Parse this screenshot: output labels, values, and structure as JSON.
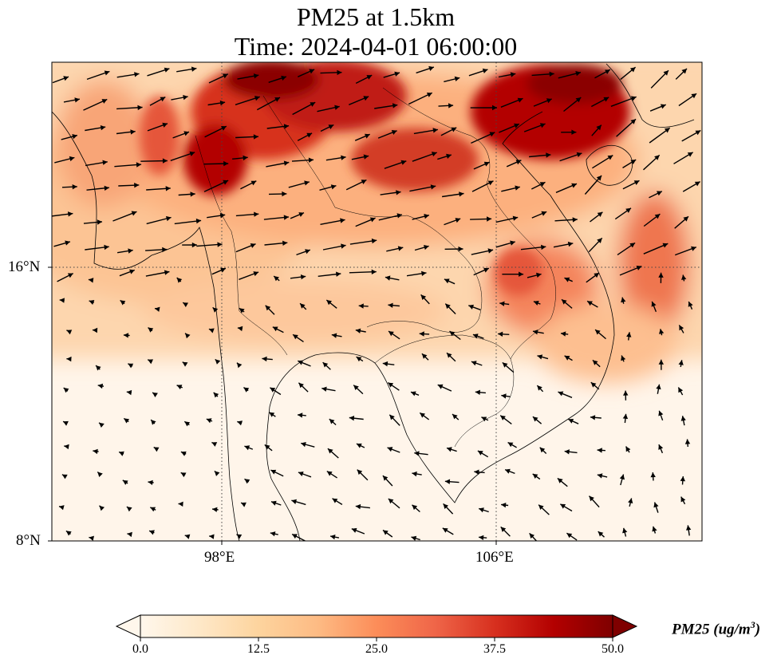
{
  "title": {
    "line1": "PM25 at 1.5km",
    "line2": "Time: 2024-04-01 06:00:00"
  },
  "axes": {
    "lat_ticks": [
      {
        "value": 16,
        "label": "16°N"
      },
      {
        "value": 8,
        "label": "8°N"
      }
    ],
    "lon_ticks": [
      {
        "value": 98,
        "label": "98°E"
      },
      {
        "value": 106,
        "label": "106°E"
      }
    ],
    "extent": {
      "lon_min": 93,
      "lon_max": 112,
      "lat_min": 8,
      "lat_max": 22
    },
    "gridlines": "dotted"
  },
  "colorbar": {
    "label": "PM25 (ug/m",
    "label_sup": "3",
    "label_close": ")",
    "colormap": "OrRd",
    "range": [
      0,
      50
    ],
    "extend": "both",
    "ticks": [
      "0.0",
      "12.5",
      "25.0",
      "37.5",
      "50.0"
    ],
    "colors": [
      "#fff7ec",
      "#fee8c8",
      "#fdd49e",
      "#fdbb84",
      "#fc8d59",
      "#ef6548",
      "#d7301f",
      "#b30000",
      "#7f0000"
    ]
  },
  "chart_data": {
    "type": "heatmap",
    "variable": "PM25",
    "units": "ug/m3",
    "level": "1.5km",
    "time": "2024-04-01 06:00:00",
    "overlay": "wind vectors (arrows)"
  }
}
